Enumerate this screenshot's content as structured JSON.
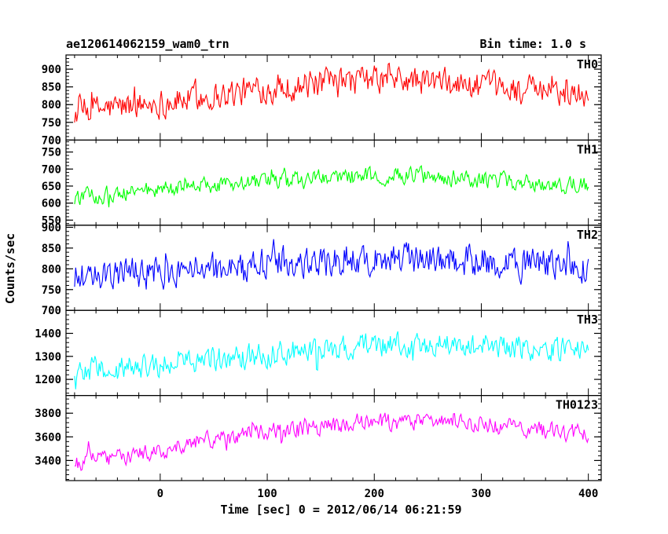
{
  "chart_data": {
    "type": "line",
    "title": "ae120614062159_wam0_trn",
    "bin_time_label": "Bin time: 1.0 s",
    "xlabel": "Time [sec] 0 = 2012/06/14 06:21:59",
    "ylabel": "Counts/sec",
    "x_range": [
      -88,
      412
    ],
    "x_ticks": [
      0,
      100,
      200,
      300,
      400
    ],
    "x_tick_labels": [
      "0",
      "100",
      "200",
      "300",
      "400"
    ],
    "x_sampling": {
      "start": -80,
      "end": 400,
      "step": 1
    },
    "grid": false,
    "panels": [
      {
        "name": "TH0",
        "color": "#ff0000",
        "ylim": [
          700,
          940
        ],
        "y_ticks": [
          700,
          750,
          800,
          850,
          900
        ],
        "y_tick_labels": [
          "700",
          "750",
          "800",
          "850",
          "900"
        ],
        "trend": [
          [
            -80,
            780
          ],
          [
            0,
            805
          ],
          [
            100,
            845
          ],
          [
            200,
            870
          ],
          [
            250,
            865
          ],
          [
            320,
            845
          ],
          [
            400,
            830
          ]
        ],
        "noise_amplitude": 42
      },
      {
        "name": "TH1",
        "color": "#00ff00",
        "ylim": [
          535,
          785
        ],
        "y_ticks": [
          550,
          600,
          650,
          700,
          750
        ],
        "y_tick_labels": [
          "550",
          "600",
          "650",
          "700",
          "750"
        ],
        "trend": [
          [
            -80,
            615
          ],
          [
            0,
            640
          ],
          [
            100,
            660
          ],
          [
            200,
            680
          ],
          [
            250,
            680
          ],
          [
            320,
            665
          ],
          [
            400,
            650
          ]
        ],
        "noise_amplitude": 26
      },
      {
        "name": "TH2",
        "color": "#0000ff",
        "ylim": [
          700,
          905
        ],
        "y_ticks": [
          700,
          750,
          800,
          850,
          900
        ],
        "y_tick_labels": [
          "700",
          "750",
          "800",
          "850",
          "900"
        ],
        "trend": [
          [
            -80,
            780
          ],
          [
            0,
            790
          ],
          [
            100,
            815
          ],
          [
            200,
            825
          ],
          [
            250,
            822
          ],
          [
            320,
            815
          ],
          [
            400,
            805
          ]
        ],
        "noise_amplitude": 40
      },
      {
        "name": "TH3",
        "color": "#00ffff",
        "ylim": [
          1130,
          1500
        ],
        "y_ticks": [
          1200,
          1300,
          1400
        ],
        "y_tick_labels": [
          "1200",
          "1300",
          "1400"
        ],
        "trend": [
          [
            -80,
            1240
          ],
          [
            0,
            1260
          ],
          [
            100,
            1310
          ],
          [
            200,
            1350
          ],
          [
            250,
            1355
          ],
          [
            320,
            1340
          ],
          [
            400,
            1320
          ]
        ],
        "noise_amplitude": 55
      },
      {
        "name": "TH0123",
        "color": "#ff00ff",
        "ylim": [
          3230,
          3950
        ],
        "y_ticks": [
          3400,
          3600,
          3800
        ],
        "y_tick_labels": [
          "3400",
          "3600",
          "3800"
        ],
        "trend": [
          [
            -80,
            3380
          ],
          [
            0,
            3480
          ],
          [
            30,
            3560
          ],
          [
            100,
            3640
          ],
          [
            200,
            3720
          ],
          [
            250,
            3740
          ],
          [
            320,
            3690
          ],
          [
            400,
            3620
          ]
        ],
        "noise_amplitude": 75
      }
    ]
  }
}
